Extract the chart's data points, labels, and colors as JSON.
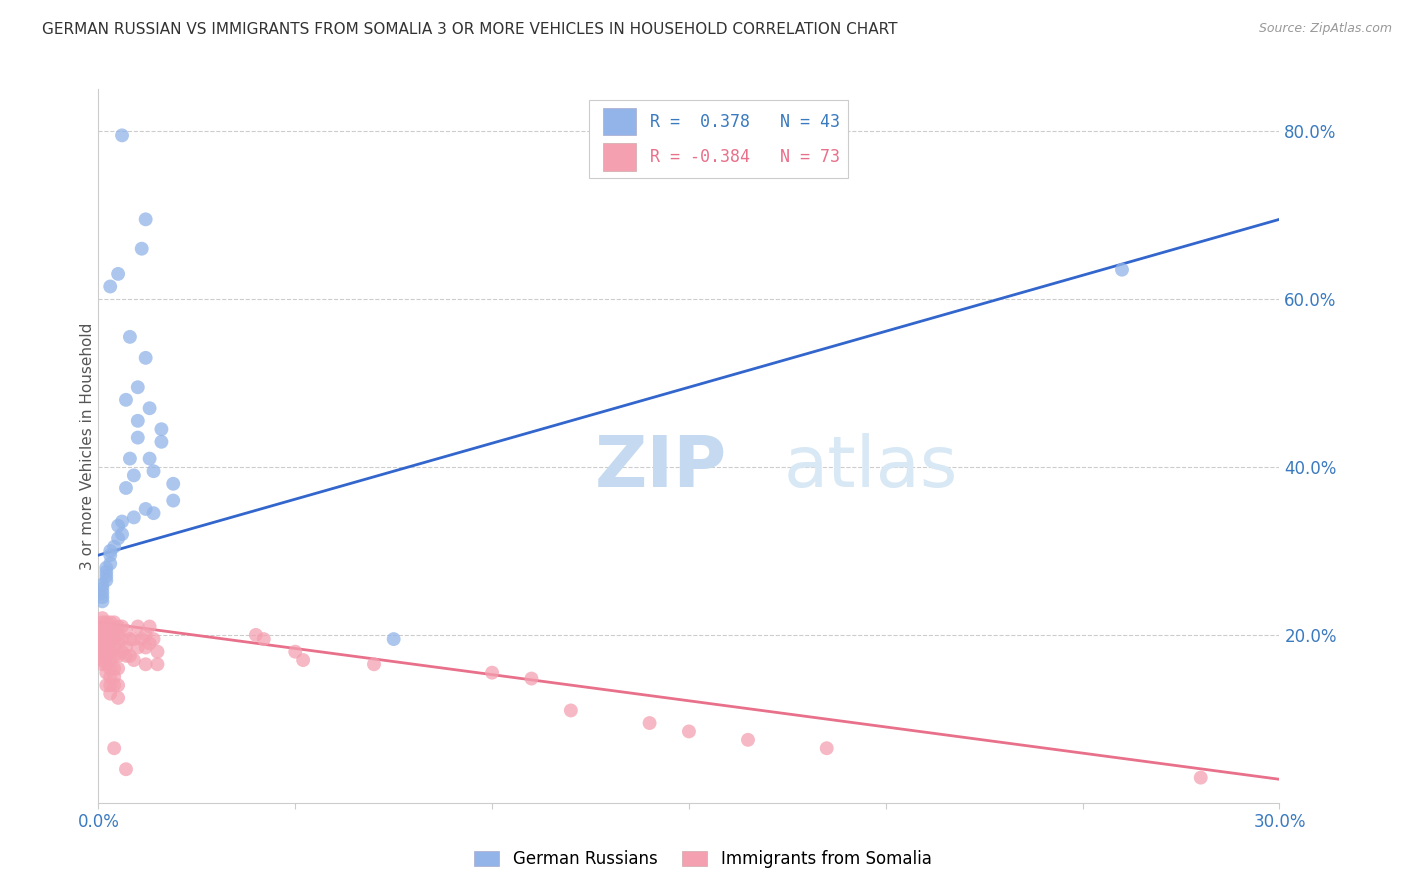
{
  "title": "GERMAN RUSSIAN VS IMMIGRANTS FROM SOMALIA 3 OR MORE VEHICLES IN HOUSEHOLD CORRELATION CHART",
  "source": "Source: ZipAtlas.com",
  "ylabel": "3 or more Vehicles in Household",
  "watermark_zip": "ZIP",
  "watermark_atlas": "atlas",
  "xmin": 0.0,
  "xmax": 0.3,
  "ymin": 0.0,
  "ymax": 0.85,
  "right_yticks": [
    0.2,
    0.4,
    0.6,
    0.8
  ],
  "right_ytick_labels": [
    "20.0%",
    "40.0%",
    "60.0%",
    "80.0%"
  ],
  "xtick_positions": [
    0.0,
    0.05,
    0.1,
    0.15,
    0.2,
    0.25,
    0.3
  ],
  "xtick_labels": [
    "0.0%",
    "",
    "",
    "",
    "",
    "",
    "30.0%"
  ],
  "legend_label1": "German Russians",
  "legend_label2": "Immigrants from Somalia",
  "blue_color": "#92b4e8",
  "pink_color": "#f4a0b0",
  "blue_line_color": "#3366cc",
  "pink_line_color": "#e8708a",
  "blue_line": {
    "x0": 0.0,
    "x1": 0.3,
    "y0": 0.295,
    "y1": 0.695
  },
  "pink_line": {
    "x0": 0.0,
    "x1": 0.3,
    "y0": 0.215,
    "y1": 0.028
  },
  "blue_scatter": [
    [
      0.006,
      0.795
    ],
    [
      0.012,
      0.695
    ],
    [
      0.011,
      0.66
    ],
    [
      0.005,
      0.63
    ],
    [
      0.008,
      0.555
    ],
    [
      0.003,
      0.615
    ],
    [
      0.012,
      0.53
    ],
    [
      0.01,
      0.495
    ],
    [
      0.007,
      0.48
    ],
    [
      0.013,
      0.47
    ],
    [
      0.01,
      0.455
    ],
    [
      0.01,
      0.435
    ],
    [
      0.016,
      0.445
    ],
    [
      0.016,
      0.43
    ],
    [
      0.008,
      0.41
    ],
    [
      0.013,
      0.41
    ],
    [
      0.014,
      0.395
    ],
    [
      0.009,
      0.39
    ],
    [
      0.019,
      0.38
    ],
    [
      0.007,
      0.375
    ],
    [
      0.019,
      0.36
    ],
    [
      0.012,
      0.35
    ],
    [
      0.014,
      0.345
    ],
    [
      0.009,
      0.34
    ],
    [
      0.006,
      0.335
    ],
    [
      0.005,
      0.33
    ],
    [
      0.006,
      0.32
    ],
    [
      0.005,
      0.315
    ],
    [
      0.004,
      0.305
    ],
    [
      0.003,
      0.3
    ],
    [
      0.003,
      0.295
    ],
    [
      0.003,
      0.285
    ],
    [
      0.002,
      0.28
    ],
    [
      0.002,
      0.275
    ],
    [
      0.002,
      0.27
    ],
    [
      0.002,
      0.265
    ],
    [
      0.001,
      0.26
    ],
    [
      0.001,
      0.255
    ],
    [
      0.001,
      0.25
    ],
    [
      0.001,
      0.245
    ],
    [
      0.001,
      0.24
    ],
    [
      0.26,
      0.635
    ],
    [
      0.075,
      0.195
    ]
  ],
  "pink_scatter": [
    [
      0.001,
      0.22
    ],
    [
      0.001,
      0.215
    ],
    [
      0.001,
      0.21
    ],
    [
      0.001,
      0.205
    ],
    [
      0.001,
      0.2
    ],
    [
      0.001,
      0.195
    ],
    [
      0.001,
      0.19
    ],
    [
      0.001,
      0.185
    ],
    [
      0.001,
      0.18
    ],
    [
      0.001,
      0.175
    ],
    [
      0.001,
      0.17
    ],
    [
      0.001,
      0.165
    ],
    [
      0.002,
      0.215
    ],
    [
      0.002,
      0.21
    ],
    [
      0.002,
      0.205
    ],
    [
      0.002,
      0.2
    ],
    [
      0.002,
      0.195
    ],
    [
      0.002,
      0.19
    ],
    [
      0.002,
      0.185
    ],
    [
      0.002,
      0.175
    ],
    [
      0.002,
      0.165
    ],
    [
      0.002,
      0.155
    ],
    [
      0.002,
      0.14
    ],
    [
      0.003,
      0.215
    ],
    [
      0.003,
      0.21
    ],
    [
      0.003,
      0.2
    ],
    [
      0.003,
      0.19
    ],
    [
      0.003,
      0.18
    ],
    [
      0.003,
      0.17
    ],
    [
      0.003,
      0.16
    ],
    [
      0.003,
      0.15
    ],
    [
      0.003,
      0.14
    ],
    [
      0.003,
      0.13
    ],
    [
      0.004,
      0.215
    ],
    [
      0.004,
      0.205
    ],
    [
      0.004,
      0.195
    ],
    [
      0.004,
      0.185
    ],
    [
      0.004,
      0.175
    ],
    [
      0.004,
      0.16
    ],
    [
      0.004,
      0.15
    ],
    [
      0.004,
      0.14
    ],
    [
      0.005,
      0.21
    ],
    [
      0.005,
      0.2
    ],
    [
      0.005,
      0.19
    ],
    [
      0.005,
      0.175
    ],
    [
      0.005,
      0.16
    ],
    [
      0.005,
      0.14
    ],
    [
      0.005,
      0.125
    ],
    [
      0.006,
      0.21
    ],
    [
      0.006,
      0.195
    ],
    [
      0.006,
      0.18
    ],
    [
      0.007,
      0.205
    ],
    [
      0.007,
      0.185
    ],
    [
      0.007,
      0.175
    ],
    [
      0.008,
      0.195
    ],
    [
      0.008,
      0.175
    ],
    [
      0.009,
      0.195
    ],
    [
      0.009,
      0.17
    ],
    [
      0.01,
      0.21
    ],
    [
      0.01,
      0.185
    ],
    [
      0.011,
      0.195
    ],
    [
      0.012,
      0.2
    ],
    [
      0.012,
      0.185
    ],
    [
      0.012,
      0.165
    ],
    [
      0.013,
      0.21
    ],
    [
      0.013,
      0.19
    ],
    [
      0.014,
      0.195
    ],
    [
      0.015,
      0.18
    ],
    [
      0.015,
      0.165
    ],
    [
      0.04,
      0.2
    ],
    [
      0.042,
      0.195
    ],
    [
      0.05,
      0.18
    ],
    [
      0.052,
      0.17
    ],
    [
      0.07,
      0.165
    ],
    [
      0.1,
      0.155
    ],
    [
      0.11,
      0.148
    ],
    [
      0.12,
      0.11
    ],
    [
      0.14,
      0.095
    ],
    [
      0.15,
      0.085
    ],
    [
      0.165,
      0.075
    ],
    [
      0.185,
      0.065
    ],
    [
      0.004,
      0.065
    ],
    [
      0.007,
      0.04
    ],
    [
      0.28,
      0.03
    ]
  ]
}
